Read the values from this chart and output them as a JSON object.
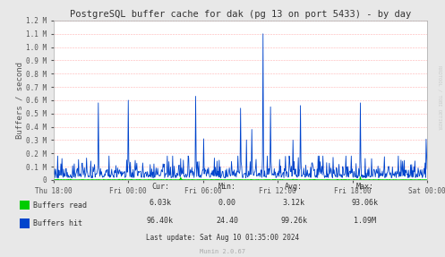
{
  "title": "PostgreSQL buffer cache for dak (pg 13 on port 5433) - by day",
  "ylabel": "Buffers / second",
  "bg_color": "#e8e8e8",
  "plot_bg_color": "#ffffff",
  "grid_color": "#ffaaaa",
  "title_color": "#333333",
  "label_color": "#555555",
  "tick_color": "#555555",
  "rrdtool_text": "RRDTOOL / TOBI OETIKER",
  "munin_text": "Munin 2.0.67",
  "last_update": "Last update: Sat Aug 10 01:35:00 2024",
  "ylim": [
    0,
    1200000
  ],
  "ytick_vals_M": [
    0,
    0.1,
    0.2,
    0.3,
    0.4,
    0.5,
    0.6,
    0.7,
    0.8,
    0.9,
    1.0,
    1.1,
    1.2
  ],
  "ytick_labels": [
    "0",
    "0.1 M",
    "0.2 M",
    "0.3 M",
    "0.4 M",
    "0.5 M",
    "0.6 M",
    "0.7 M",
    "0.8 M",
    "0.9 M",
    "1.0 M",
    "1.1 M",
    "1.2 M"
  ],
  "xtick_labels": [
    "Thu 18:00",
    "Fri 00:00",
    "Fri 06:00",
    "Fri 12:00",
    "Fri 18:00",
    "Sat 00:00"
  ],
  "buffers_read_color": "#00cc00",
  "buffers_hit_color": "#0044cc",
  "stats_headers": [
    "Cur:",
    "Min:",
    "Avg:",
    "Max:"
  ],
  "stats_row1": [
    "6.03k",
    "0.00",
    "3.12k",
    "93.06k"
  ],
  "stats_row2": [
    "96.40k",
    "24.40",
    "99.26k",
    "1.09M"
  ],
  "row_labels": [
    "Buffers read",
    "Buffers hit"
  ],
  "num_points": 700,
  "seed": 99
}
